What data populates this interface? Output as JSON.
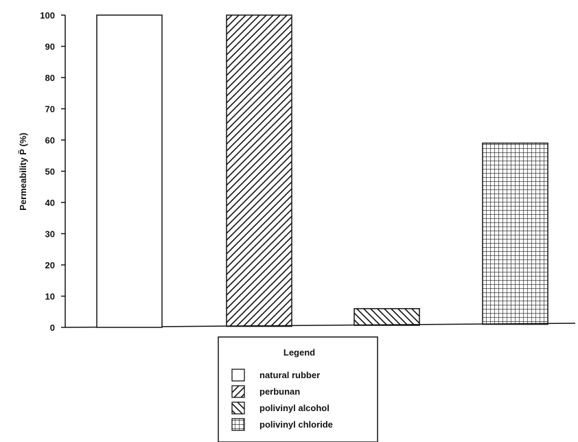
{
  "chart_data": {
    "type": "bar",
    "title": "",
    "xlabel": "",
    "ylabel": "Permeability P̃ (%)",
    "ylim": [
      0,
      100
    ],
    "yticks": [
      0,
      10,
      20,
      30,
      40,
      50,
      60,
      70,
      80,
      90,
      100
    ],
    "grid": false,
    "legend_position": "bottom-center",
    "legend_title": "Legend",
    "categories": [
      "natural rubber",
      "perbunan",
      "polivinyl alcohol",
      "polivinyl chloride"
    ],
    "series": [
      {
        "name": "natural rubber",
        "value": 100,
        "pattern": "none"
      },
      {
        "name": "perbunan",
        "value": 100,
        "pattern": "diagonal-forward"
      },
      {
        "name": "polivinyl alcohol",
        "value": 6,
        "pattern": "diagonal-back"
      },
      {
        "name": "polivinyl chloride",
        "value": 59,
        "pattern": "grid"
      }
    ],
    "colors": {
      "stroke": "#111111",
      "fill": "#ffffff"
    }
  }
}
